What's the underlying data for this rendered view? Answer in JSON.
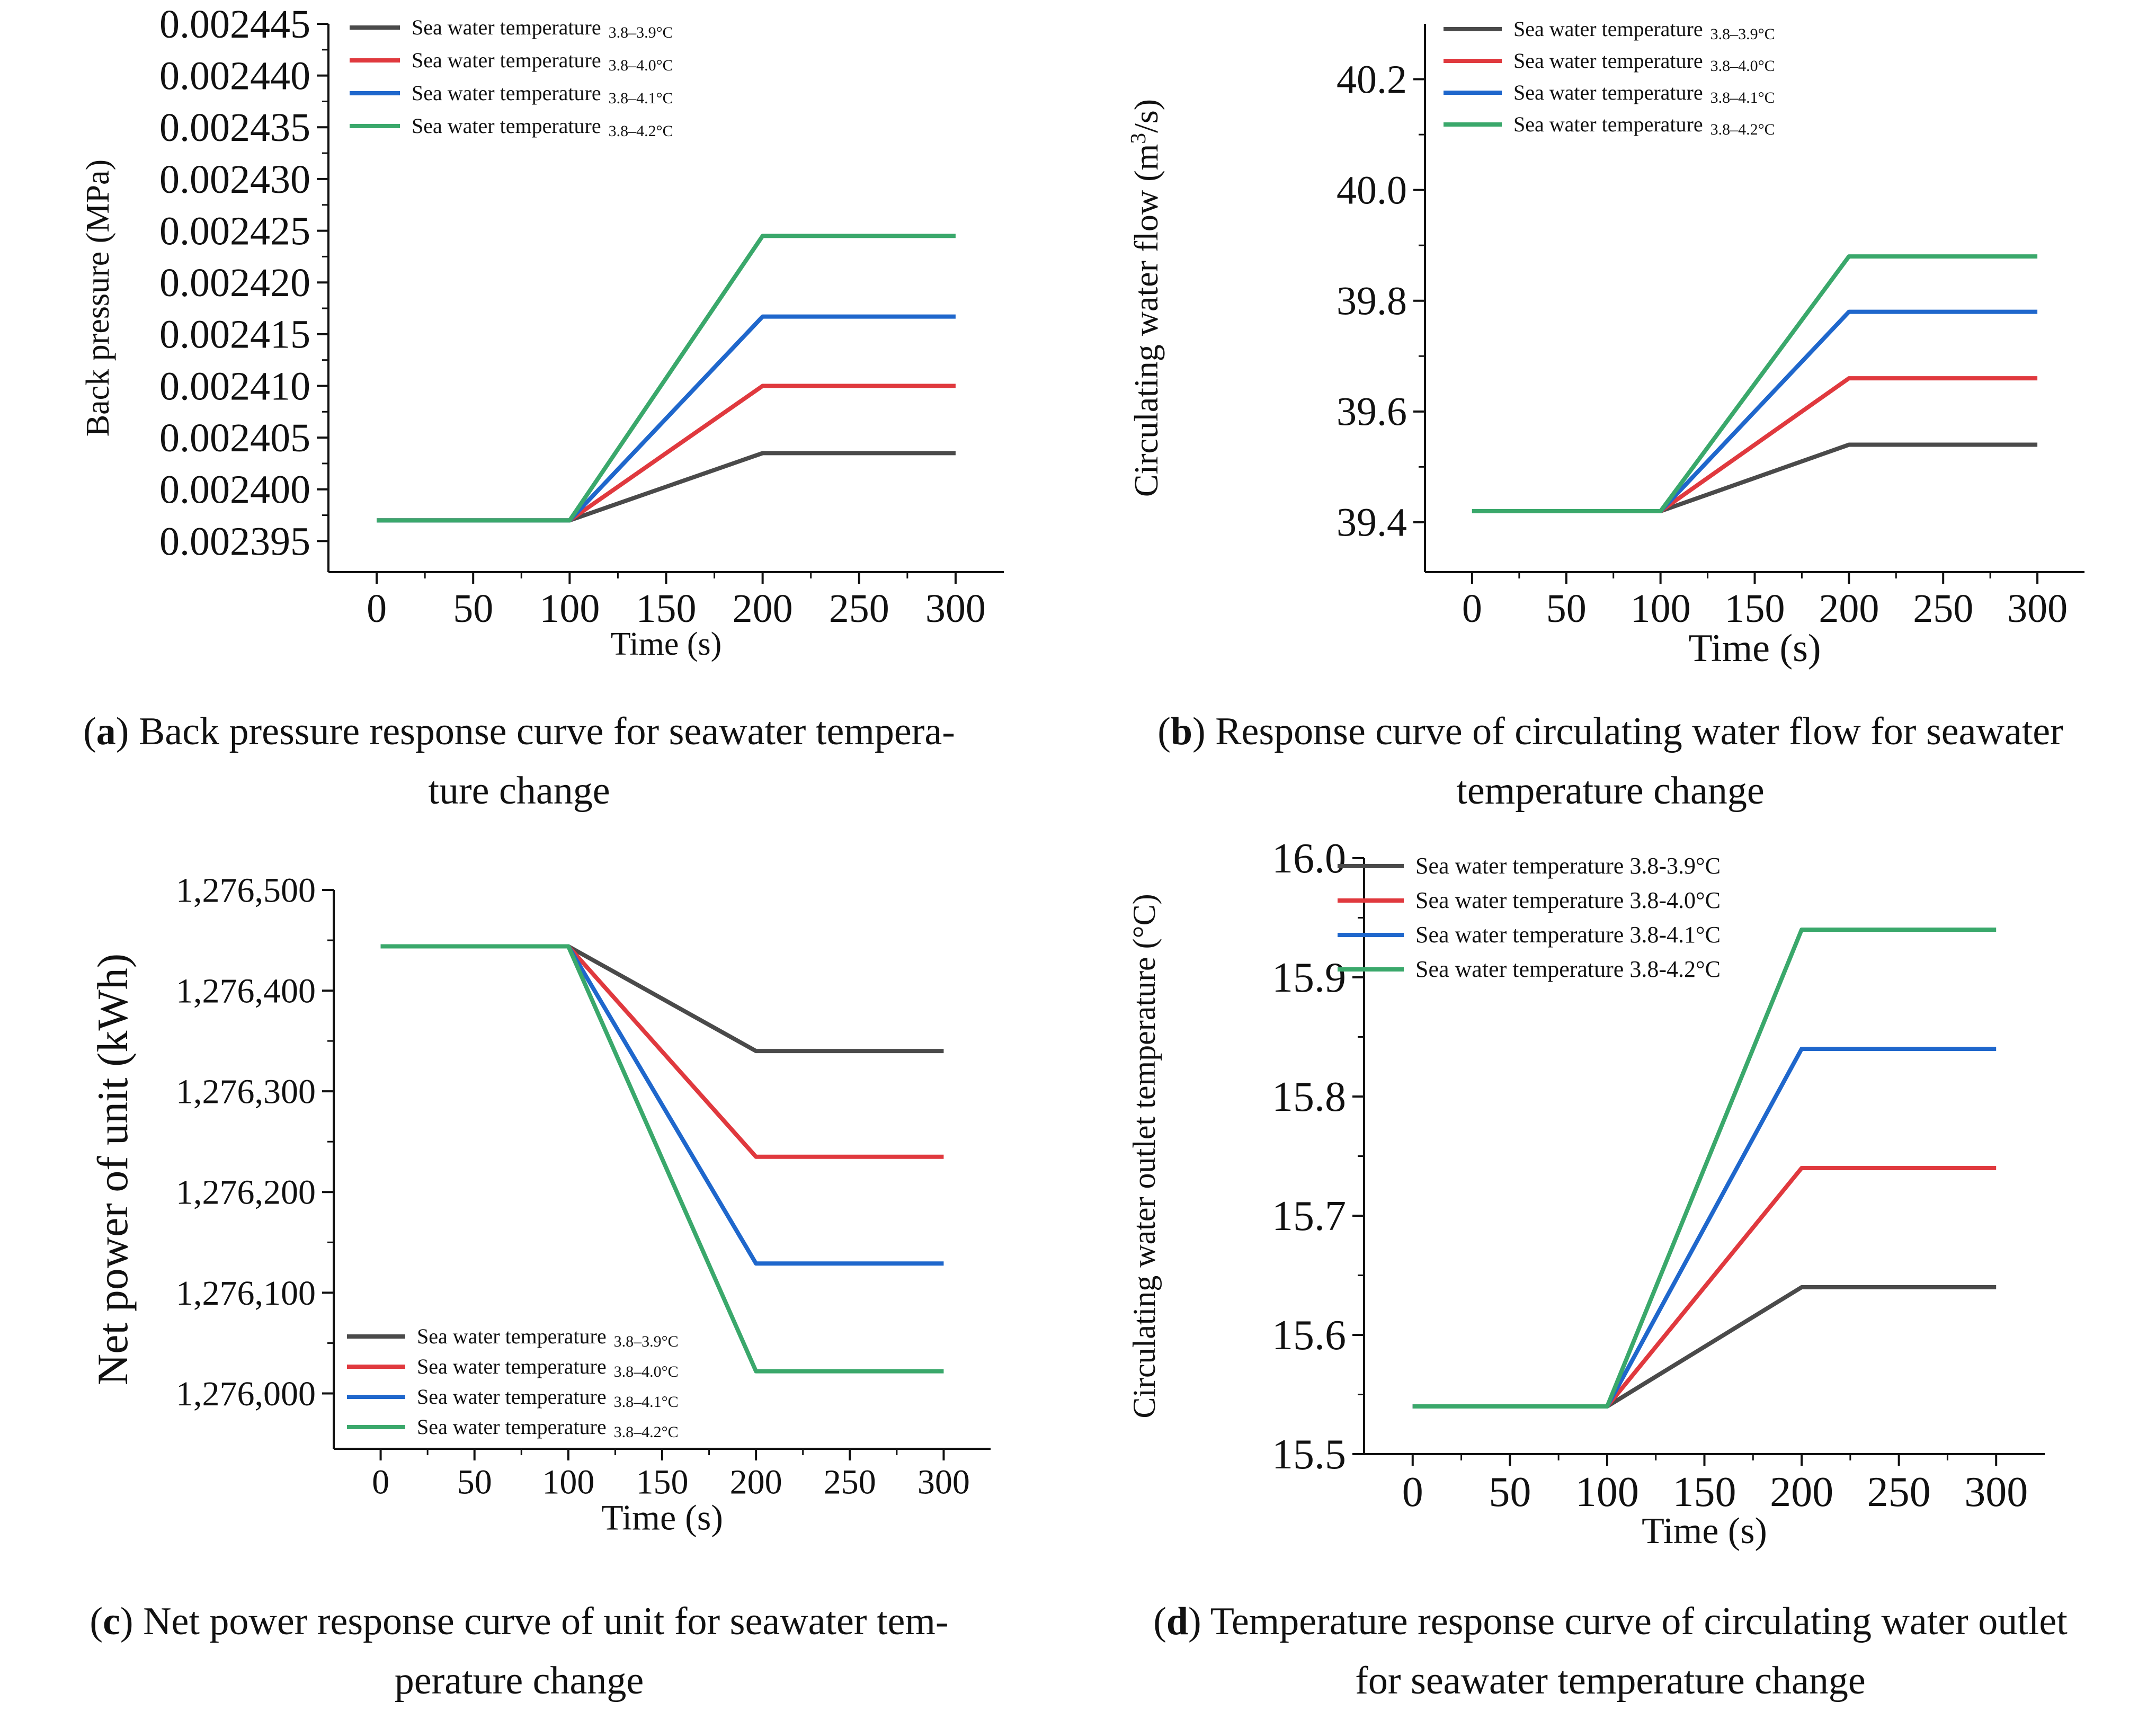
{
  "chart_data": [
    {
      "id": "a",
      "type": "line",
      "title": "",
      "xlabel": "Time (s)",
      "ylabel": "Back pressure (MPa)",
      "xlim": [
        -25,
        325
      ],
      "ylim": [
        0.002392,
        0.002445
      ],
      "xticks": [
        0,
        50,
        100,
        150,
        200,
        250,
        300
      ],
      "yticks": [
        0.002395,
        0.0024,
        0.002405,
        0.00241,
        0.002415,
        0.00242,
        0.002425,
        0.00243,
        0.002435,
        0.00244,
        0.002445
      ],
      "ytick_labels": [
        "0.002395",
        "0.002400",
        "0.002405",
        "0.002410",
        "0.002415",
        "0.002420",
        "0.002425",
        "0.002430",
        "0.002435",
        "0.002440",
        "0.002445"
      ],
      "x": [
        0,
        100,
        200,
        300
      ],
      "series": [
        {
          "name": "Sea water temperature",
          "range": "3.8–3.9°C",
          "color": "#4a4a4a",
          "values": [
            0.002397,
            0.002397,
            0.0024035,
            0.0024035
          ]
        },
        {
          "name": "Sea water temperature",
          "range": "3.8–4.0°C",
          "color": "#e0393e",
          "values": [
            0.002397,
            0.002397,
            0.00241,
            0.00241
          ]
        },
        {
          "name": "Sea water temperature",
          "range": "3.8–4.1°C",
          "color": "#1f67cc",
          "values": [
            0.002397,
            0.002397,
            0.0024167,
            0.0024167
          ]
        },
        {
          "name": "Sea water temperature",
          "range": "3.8–4.2°C",
          "color": "#3aa86b",
          "values": [
            0.002397,
            0.002397,
            0.0024245,
            0.0024245
          ]
        }
      ],
      "legend_position": "top-left"
    },
    {
      "id": "b",
      "type": "line",
      "title": "",
      "xlabel": "Time (s)",
      "ylabel_main": "Circulating water flow (m",
      "ylabel_sup": "3",
      "ylabel_end": "/s)",
      "xlim": [
        -25,
        325
      ],
      "ylim": [
        39.31,
        40.3
      ],
      "xticks": [
        0,
        50,
        100,
        150,
        200,
        250,
        300
      ],
      "yticks": [
        39.4,
        39.6,
        39.8,
        40.0,
        40.2
      ],
      "ytick_labels": [
        "39.4",
        "39.6",
        "39.8",
        "40.0",
        "40.2"
      ],
      "x": [
        0,
        100,
        200,
        300
      ],
      "series": [
        {
          "name": "Sea water temperature",
          "range": "3.8–3.9°C",
          "color": "#4a4a4a",
          "values": [
            39.42,
            39.42,
            39.54,
            39.54
          ]
        },
        {
          "name": "Sea water temperature",
          "range": "3.8–4.0°C",
          "color": "#e0393e",
          "values": [
            39.42,
            39.42,
            39.66,
            39.66
          ]
        },
        {
          "name": "Sea water temperature",
          "range": "3.8–4.1°C",
          "color": "#1f67cc",
          "values": [
            39.42,
            39.42,
            39.78,
            39.78
          ]
        },
        {
          "name": "Sea water temperature",
          "range": "3.8–4.2°C",
          "color": "#3aa86b",
          "values": [
            39.42,
            39.42,
            39.88,
            39.88
          ]
        }
      ],
      "legend_position": "top-left"
    },
    {
      "id": "c",
      "type": "line",
      "title": "",
      "xlabel": "Time (s)",
      "ylabel": "Net power of unit (kWh)",
      "xlim": [
        -25,
        325
      ],
      "ylim": [
        1275945,
        1276500
      ],
      "xticks": [
        0,
        50,
        100,
        150,
        200,
        250,
        300
      ],
      "yticks": [
        1276000,
        1276100,
        1276200,
        1276300,
        1276400,
        1276500
      ],
      "ytick_labels": [
        "1,276,000",
        "1,276,100",
        "1,276,200",
        "1,276,300",
        "1,276,400",
        "1,276,500"
      ],
      "x": [
        0,
        100,
        200,
        300
      ],
      "series": [
        {
          "name": "Sea water temperature",
          "range": "3.8–3.9°C",
          "color": "#4a4a4a",
          "values": [
            1276444,
            1276444,
            1276340,
            1276340
          ]
        },
        {
          "name": "Sea water temperature",
          "range": "3.8–4.0°C",
          "color": "#e0393e",
          "values": [
            1276444,
            1276444,
            1276235,
            1276235
          ]
        },
        {
          "name": "Sea water temperature",
          "range": "3.8–4.1°C",
          "color": "#1f67cc",
          "values": [
            1276444,
            1276444,
            1276129,
            1276129
          ]
        },
        {
          "name": "Sea water temperature",
          "range": "3.8–4.2°C",
          "color": "#3aa86b",
          "values": [
            1276444,
            1276444,
            1276022,
            1276022
          ]
        }
      ],
      "legend_position": "bottom-left"
    },
    {
      "id": "d",
      "type": "line",
      "title": "",
      "xlabel": "Time (s)",
      "ylabel": "Circulating water outlet temperature (°C)",
      "xlim": [
        -25,
        325
      ],
      "ylim": [
        15.5,
        16.0
      ],
      "xticks": [
        0,
        50,
        100,
        150,
        200,
        250,
        300
      ],
      "yticks": [
        15.5,
        15.6,
        15.7,
        15.8,
        15.9,
        16.0
      ],
      "ytick_labels": [
        "15.5",
        "15.6",
        "15.7",
        "15.8",
        "15.9",
        "16.0"
      ],
      "x": [
        0,
        100,
        200,
        300
      ],
      "series": [
        {
          "name": "Sea water temperature 3.8-3.9°C",
          "color": "#4a4a4a",
          "values": [
            15.54,
            15.54,
            15.64,
            15.64
          ]
        },
        {
          "name": "Sea water temperature 3.8-4.0°C",
          "color": "#e0393e",
          "values": [
            15.54,
            15.54,
            15.74,
            15.74
          ]
        },
        {
          "name": "Sea water temperature 3.8-4.1°C",
          "color": "#1f67cc",
          "values": [
            15.54,
            15.54,
            15.84,
            15.84
          ]
        },
        {
          "name": "Sea water temperature 3.8-4.2°C",
          "color": "#3aa86b",
          "values": [
            15.54,
            15.54,
            15.94,
            15.94
          ]
        }
      ],
      "legend_position": "top-left"
    }
  ],
  "captions": {
    "a": {
      "label": "a",
      "line1": ") Back pressure response curve for seawater tempera-",
      "line2": "ture change"
    },
    "b": {
      "label": "b",
      "line1": ") Response curve of circulating water flow for seawater",
      "line2": "temperature change"
    },
    "c": {
      "label": "c",
      "line1": ") Net power response curve of unit for seawater tem-",
      "line2": "perature change"
    },
    "d": {
      "label": "d",
      "line1": ") Temperature response curve of circulating water outlet",
      "line2": "for seawater temperature change"
    }
  }
}
